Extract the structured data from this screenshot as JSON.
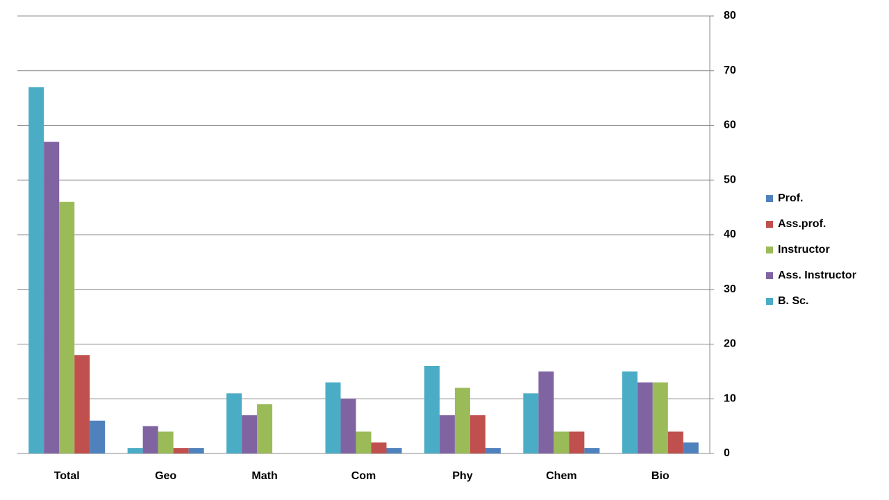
{
  "chart_data": {
    "type": "bar",
    "categories": [
      "Total",
      "Geo",
      "Math",
      "Com",
      "Phy",
      "Chem",
      "Bio"
    ],
    "series": [
      {
        "name": "B. Sc.",
        "color": "#4bacc6",
        "values": [
          67,
          1,
          11,
          13,
          16,
          11,
          15
        ]
      },
      {
        "name": "Ass. Instructor",
        "color": "#8064a2",
        "values": [
          57,
          5,
          7,
          10,
          7,
          15,
          13
        ]
      },
      {
        "name": "Instructor",
        "color": "#9bbb59",
        "values": [
          46,
          4,
          9,
          4,
          12,
          4,
          13
        ]
      },
      {
        "name": "Ass.prof.",
        "color": "#c0504d",
        "values": [
          18,
          1,
          0,
          2,
          7,
          4,
          4
        ]
      },
      {
        "name": "Prof.",
        "color": "#4f81bd",
        "values": [
          6,
          1,
          0,
          1,
          1,
          1,
          2
        ]
      }
    ],
    "ylim": [
      0,
      80
    ],
    "yticks": [
      0,
      10,
      20,
      30,
      40,
      50,
      60,
      70,
      80
    ],
    "grid": true,
    "y_axis_side": "right",
    "legend": "right"
  }
}
